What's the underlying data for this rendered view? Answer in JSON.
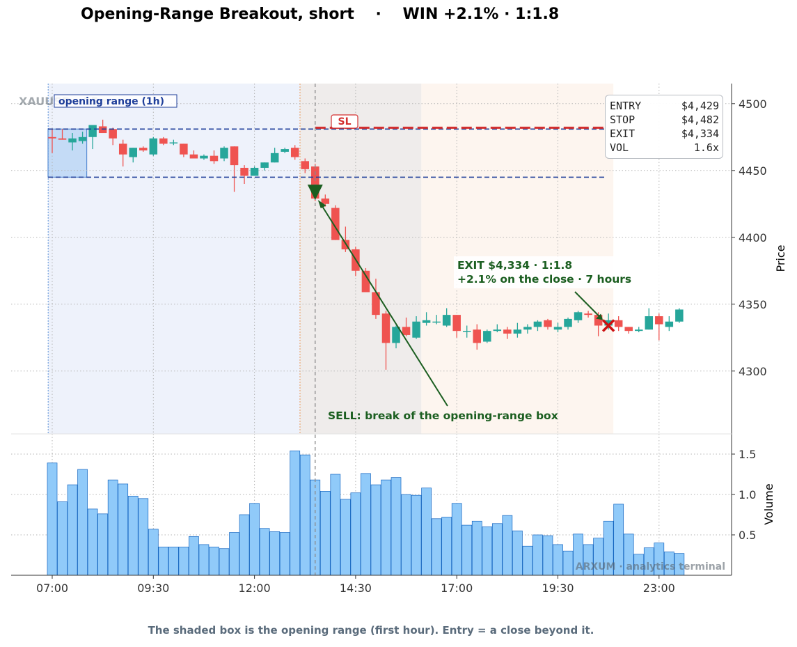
{
  "title": "Opening-Range Breakout, short    ·    WIN +2.1% · 1:1.8",
  "caption": "The shaded box is the opening range (first hour). Entry = a close beyond it.",
  "symbol_label": "XAUUSD · 15m",
  "opening_range_label": "opening range (1h)",
  "sl_label": "SL",
  "watermark": "ARXUM · analytics terminal",
  "info": [
    {
      "key": "ENTRY",
      "value": "$4,429"
    },
    {
      "key": "STOP",
      "value": "$4,482"
    },
    {
      "key": "EXIT",
      "value": "$4,334"
    },
    {
      "key": "VOL",
      "value": "1.6x"
    }
  ],
  "annotations": {
    "sell": "SELL: break of the opening-range box",
    "exit_line1": "EXIT $4,334 · 1:1.8",
    "exit_line2": "+2.1% on the close  ·  7 hours"
  },
  "colors": {
    "bull": "#26a69a",
    "bear": "#ef5350",
    "volume": "#90caf9",
    "range_line": "#1f3f9a",
    "stop_line": "#d32f2f",
    "annotation": "#1b5e20",
    "exit_marker": "#cc1111"
  },
  "chart_data": {
    "type": "candlestick",
    "ylabel": "Price",
    "ylabel2": "Volume",
    "yticks": [
      4300,
      4350,
      4400,
      4450,
      4500
    ],
    "ylim": [
      4253,
      4515
    ],
    "volume_ticks": [
      0.5,
      1.0,
      1.5
    ],
    "volume_ylim": [
      0.0,
      1.75
    ],
    "xtick_labels": [
      "07:00",
      "09:30",
      "12:00",
      "14:30",
      "17:00",
      "19:30",
      "23:00"
    ],
    "xtick_index": [
      0,
      10,
      20,
      30,
      40,
      50,
      60
    ],
    "opening_range": {
      "high": 4481,
      "low": 4445,
      "start_index": 0,
      "end_index": 3
    },
    "entry": {
      "index": 26,
      "price": 4429
    },
    "stop": {
      "price": 4482
    },
    "exit": {
      "index": 55,
      "price": 4334
    },
    "candles": [
      {
        "o": 4475,
        "h": 4481,
        "l": 4463,
        "c": 4474
      },
      {
        "o": 4474,
        "h": 4481,
        "l": 4473,
        "c": 4473
      },
      {
        "o": 4471,
        "h": 4478,
        "l": 4465,
        "c": 4474
      },
      {
        "o": 4472,
        "h": 4479,
        "l": 4470,
        "c": 4475
      },
      {
        "o": 4475,
        "h": 4483,
        "l": 4466,
        "c": 4484
      },
      {
        "o": 4483,
        "h": 4488,
        "l": 4480,
        "c": 4478
      },
      {
        "o": 4481,
        "h": 4482,
        "l": 4469,
        "c": 4474
      },
      {
        "o": 4470,
        "h": 4473,
        "l": 4453,
        "c": 4462
      },
      {
        "o": 4460,
        "h": 4467,
        "l": 4456,
        "c": 4467
      },
      {
        "o": 4467,
        "h": 4468,
        "l": 4464,
        "c": 4465
      },
      {
        "o": 4462,
        "h": 4475,
        "l": 4461,
        "c": 4474
      },
      {
        "o": 4474,
        "h": 4475,
        "l": 4469,
        "c": 4470
      },
      {
        "o": 4471,
        "h": 4473,
        "l": 4469,
        "c": 4471
      },
      {
        "o": 4470,
        "h": 4470,
        "l": 4460,
        "c": 4462
      },
      {
        "o": 4462,
        "h": 4465,
        "l": 4459,
        "c": 4459
      },
      {
        "o": 4459,
        "h": 4462,
        "l": 4458,
        "c": 4461
      },
      {
        "o": 4461,
        "h": 4465,
        "l": 4455,
        "c": 4457
      },
      {
        "o": 4459,
        "h": 4468,
        "l": 4457,
        "c": 4467
      },
      {
        "o": 4468,
        "h": 4468,
        "l": 4434,
        "c": 4454
      },
      {
        "o": 4452,
        "h": 4454,
        "l": 4440,
        "c": 4446
      },
      {
        "o": 4446,
        "h": 4453,
        "l": 4446,
        "c": 4452
      },
      {
        "o": 4452,
        "h": 4456,
        "l": 4450,
        "c": 4456
      },
      {
        "o": 4456,
        "h": 4467,
        "l": 4456,
        "c": 4463
      },
      {
        "o": 4464,
        "h": 4467,
        "l": 4463,
        "c": 4466
      },
      {
        "o": 4467,
        "h": 4469,
        "l": 4458,
        "c": 4460
      },
      {
        "o": 4457,
        "h": 4459,
        "l": 4448,
        "c": 4451
      },
      {
        "o": 4453,
        "h": 4455,
        "l": 4427,
        "c": 4429
      },
      {
        "o": 4429,
        "h": 4432,
        "l": 4423,
        "c": 4425
      },
      {
        "o": 4422,
        "h": 4424,
        "l": 4398,
        "c": 4398
      },
      {
        "o": 4398,
        "h": 4408,
        "l": 4389,
        "c": 4391
      },
      {
        "o": 4391,
        "h": 4393,
        "l": 4371,
        "c": 4375
      },
      {
        "o": 4375,
        "h": 4377,
        "l": 4359,
        "c": 4359
      },
      {
        "o": 4359,
        "h": 4369,
        "l": 4339,
        "c": 4342
      },
      {
        "o": 4343,
        "h": 4345,
        "l": 4301,
        "c": 4321
      },
      {
        "o": 4321,
        "h": 4334,
        "l": 4317,
        "c": 4333
      },
      {
        "o": 4333,
        "h": 4340,
        "l": 4326,
        "c": 4327
      },
      {
        "o": 4325,
        "h": 4341,
        "l": 4324,
        "c": 4337
      },
      {
        "o": 4336,
        "h": 4344,
        "l": 4334,
        "c": 4338
      },
      {
        "o": 4337,
        "h": 4342,
        "l": 4335,
        "c": 4337
      },
      {
        "o": 4334,
        "h": 4347,
        "l": 4333,
        "c": 4342
      },
      {
        "o": 4342,
        "h": 4342,
        "l": 4325,
        "c": 4330
      },
      {
        "o": 4330,
        "h": 4334,
        "l": 4325,
        "c": 4330
      },
      {
        "o": 4331,
        "h": 4335,
        "l": 4316,
        "c": 4321
      },
      {
        "o": 4322,
        "h": 4331,
        "l": 4321,
        "c": 4330
      },
      {
        "o": 4330,
        "h": 4335,
        "l": 4329,
        "c": 4331
      },
      {
        "o": 4331,
        "h": 4333,
        "l": 4324,
        "c": 4328
      },
      {
        "o": 4328,
        "h": 4336,
        "l": 4325,
        "c": 4331
      },
      {
        "o": 4331,
        "h": 4335,
        "l": 4328,
        "c": 4333
      },
      {
        "o": 4333,
        "h": 4338,
        "l": 4330,
        "c": 4337
      },
      {
        "o": 4338,
        "h": 4339,
        "l": 4331,
        "c": 4333
      },
      {
        "o": 4331,
        "h": 4336,
        "l": 4329,
        "c": 4333
      },
      {
        "o": 4333,
        "h": 4340,
        "l": 4331,
        "c": 4339
      },
      {
        "o": 4338,
        "h": 4345,
        "l": 4336,
        "c": 4344
      },
      {
        "o": 4343,
        "h": 4345,
        "l": 4340,
        "c": 4342
      },
      {
        "o": 4342,
        "h": 4344,
        "l": 4326,
        "c": 4334
      },
      {
        "o": 4334,
        "h": 4343,
        "l": 4331,
        "c": 4338
      },
      {
        "o": 4338,
        "h": 4341,
        "l": 4330,
        "c": 4333
      },
      {
        "o": 4333,
        "h": 4333,
        "l": 4328,
        "c": 4330
      },
      {
        "o": 4330,
        "h": 4333,
        "l": 4329,
        "c": 4331
      },
      {
        "o": 4331,
        "h": 4347,
        "l": 4331,
        "c": 4341
      },
      {
        "o": 4341,
        "h": 4343,
        "l": 4323,
        "c": 4335
      },
      {
        "o": 4333,
        "h": 4341,
        "l": 4330,
        "c": 4337
      },
      {
        "o": 4337,
        "h": 4347,
        "l": 4336,
        "c": 4346
      }
    ],
    "volume": [
      1.39,
      0.91,
      1.12,
      1.31,
      0.82,
      0.76,
      1.18,
      1.13,
      0.98,
      0.95,
      0.57,
      0.35,
      0.35,
      0.35,
      0.48,
      0.38,
      0.35,
      0.33,
      0.53,
      0.75,
      0.89,
      0.58,
      0.54,
      0.53,
      1.54,
      1.49,
      1.18,
      1.04,
      1.25,
      0.94,
      1.02,
      1.26,
      1.12,
      1.18,
      1.21,
      1.0,
      0.99,
      1.08,
      0.7,
      0.72,
      0.89,
      0.62,
      0.67,
      0.6,
      0.64,
      0.74,
      0.55,
      0.36,
      0.5,
      0.49,
      0.38,
      0.3,
      0.51,
      0.38,
      0.46,
      0.67,
      0.88,
      0.51,
      0.26,
      0.34,
      0.4,
      0.29,
      0.27
    ]
  }
}
